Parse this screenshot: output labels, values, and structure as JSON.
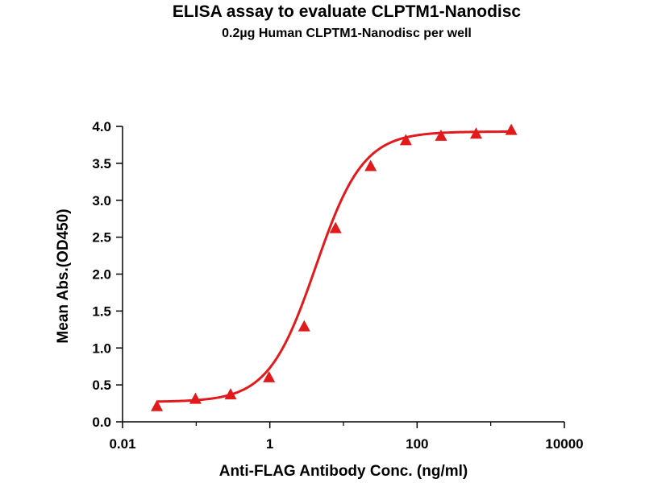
{
  "chart_data": {
    "type": "line",
    "title": "ELISA assay to evaluate CLPTM1-Nanodisc",
    "subtitle": "0.2µg Human CLPTM1-Nanodisc per well",
    "xlabel": "Anti-FLAG Antibody Conc. (ng/ml)",
    "ylabel": "Mean Abs.(OD450)",
    "x_scale": "log",
    "xlim": [
      0.01,
      10000
    ],
    "ylim": [
      0.0,
      4.0
    ],
    "x_ticks": [
      0.01,
      1,
      100,
      10000
    ],
    "x_tick_labels": [
      "0.01",
      "1",
      "100",
      "10000"
    ],
    "y_ticks": [
      0.0,
      0.5,
      1.0,
      1.5,
      2.0,
      2.5,
      3.0,
      3.5,
      4.0
    ],
    "y_tick_labels": [
      "0.0",
      "0.5",
      "1.0",
      "1.5",
      "2.0",
      "2.5",
      "3.0",
      "3.5",
      "4.0"
    ],
    "grid": false,
    "series": [
      {
        "color": "#e31a1c",
        "marker": "triangle",
        "x": [
          0.0293,
          0.0977,
          0.293,
          0.977,
          2.93,
          7.81,
          23.4,
          70.3,
          211,
          633,
          1900
        ],
        "y": [
          0.21,
          0.31,
          0.37,
          0.6,
          1.29,
          2.62,
          3.46,
          3.81,
          3.87,
          3.9,
          3.95
        ]
      }
    ]
  }
}
